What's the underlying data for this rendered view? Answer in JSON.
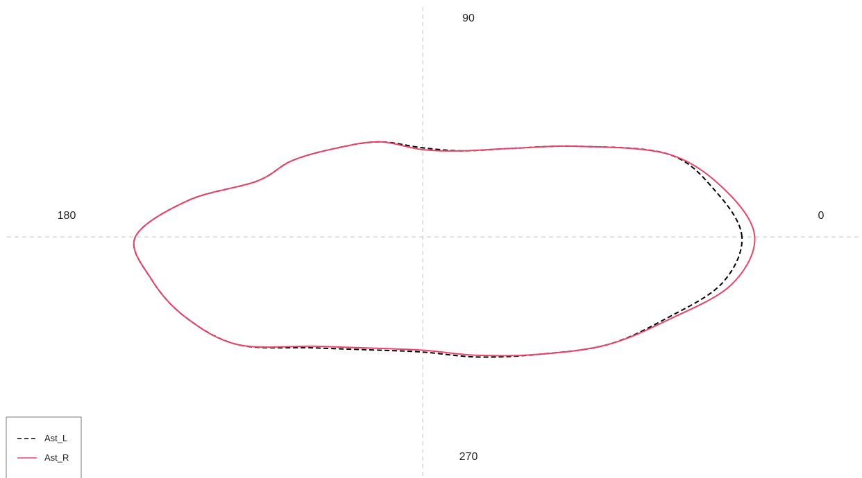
{
  "chart_data": {
    "type": "line",
    "subtype": "polar",
    "title": "",
    "angle_unit": "degrees",
    "angle_labels": [
      {
        "angle": 0,
        "label": "0"
      },
      {
        "angle": 90,
        "label": "90"
      },
      {
        "angle": 180,
        "label": "180"
      },
      {
        "angle": 270,
        "label": "270"
      }
    ],
    "radial_axis_visible": false,
    "grid": "dashed axis lines at 0/90/180/270",
    "legend_position": "bottom-left",
    "series": [
      {
        "name": "Ast_L",
        "color": "#000000",
        "line_style": "dashed",
        "angles": [
          0,
          15,
          30,
          45,
          60,
          75,
          90,
          105,
          120,
          135,
          150,
          165,
          180,
          195,
          210,
          225,
          240,
          255,
          270,
          285,
          300,
          315,
          330,
          345
        ],
        "radius": [
          1.0,
          0.95,
          0.89,
          0.69,
          0.55,
          0.48,
          0.48,
          0.53,
          0.55,
          0.58,
          0.6,
          0.76,
          0.9,
          0.88,
          0.86,
          0.82,
          0.69,
          0.63,
          0.62,
          0.67,
          0.73,
          0.82,
          0.88,
          0.97
        ]
      },
      {
        "name": "Ast_R",
        "color": "#E8446A",
        "line_style": "solid",
        "angles": [
          0,
          15,
          30,
          45,
          60,
          75,
          90,
          105,
          120,
          135,
          150,
          165,
          180,
          195,
          210,
          225,
          240,
          255,
          270,
          285,
          300,
          315,
          330,
          345
        ],
        "radius": [
          1.04,
          0.98,
          0.89,
          0.69,
          0.55,
          0.48,
          0.47,
          0.53,
          0.55,
          0.58,
          0.6,
          0.76,
          0.9,
          0.88,
          0.86,
          0.82,
          0.68,
          0.62,
          0.61,
          0.66,
          0.73,
          0.82,
          0.89,
          1.0
        ]
      }
    ]
  }
}
